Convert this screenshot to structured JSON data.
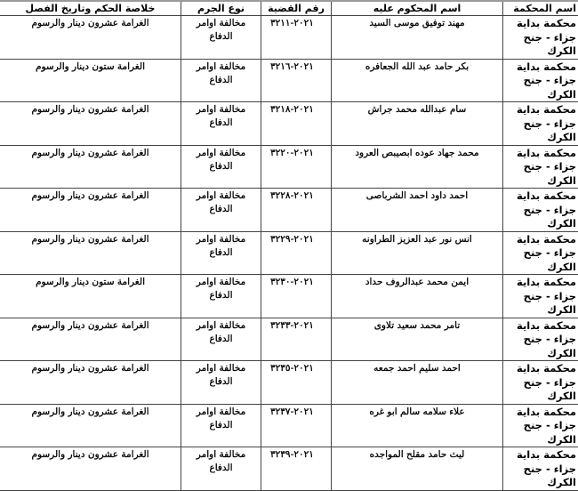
{
  "headers": {
    "court": "اسم المحكمة",
    "name": "اسم المحكوم عليه",
    "case": "رقم القضية",
    "crime": "نوع الجرم",
    "verdict": "خلاصة الحكم وتاريخ الفصل"
  },
  "rows": [
    {
      "court": "محكمة بداية جزاء - جنح الكرك",
      "name": "مهند توفيق موسى السيد",
      "case": "٢٠٢١-٣٢١١",
      "crime": "مخالفة اوامر الدفاع",
      "verdict": "الغرامة عشرون دينار والرسوم"
    },
    {
      "court": "محكمة بداية جزاء - جنح الكرك",
      "name": "بكر حامد عبد الله الجعافره",
      "case": "٢٠٢١-٣٢١٦",
      "crime": "مخالفة اوامر الدفاع",
      "verdict": "الغرامة ستون دينار والرسوم"
    },
    {
      "court": "محكمة بداية جزاء - جنح الكرك",
      "name": "سام عبدالله محمد جراش",
      "case": "٢٠٢١-٣٢١٨",
      "crime": "مخالفة اوامر الدفاع",
      "verdict": "الغرامة عشرون دينار والرسوم"
    },
    {
      "court": "محكمة بداية جزاء - جنح الكرك",
      "name": "محمد جهاد عوده ابصيبص العرود",
      "case": "٢٠٢١-٣٢٢٠",
      "crime": "مخالفة اوامر الدفاع",
      "verdict": "الغرامة عشرون دينار والرسوم"
    },
    {
      "court": "محكمة بداية جزاء - جنح الكرك",
      "name": "احمد داود احمد الشرباصى",
      "case": "٢٠٢١-٣٢٢٨",
      "crime": "مخالفة اوامر الدفاع",
      "verdict": "الغرامة عشرون دينار والرسوم"
    },
    {
      "court": "محكمة بداية جزاء - جنح الكرك",
      "name": "انس نور عبد العزيز الطراونه",
      "case": "٢٠٢١-٣٢٢٩",
      "crime": "مخالفة اوامر الدفاع",
      "verdict": "الغرامة عشرون دينار والرسوم"
    },
    {
      "court": "محكمة بداية جزاء - جنح الكرك",
      "name": "ايمن محمد عبدالروف حداد",
      "case": "٢٠٢١-٣٢٣٠",
      "crime": "مخالفة اوامر الدفاع",
      "verdict": "الغرامة ستون دينار والرسوم"
    },
    {
      "court": "محكمة بداية جزاء - جنح الكرك",
      "name": "تامر محمد سعيد تلاوى",
      "case": "٢٠٢١-٣٢٣٣",
      "crime": "مخالفة اوامر الدفاع",
      "verdict": "الغرامة عشرون دينار والرسوم"
    },
    {
      "court": "محكمة بداية جزاء - جنح الكرك",
      "name": "احمد سليم احمد جمعه",
      "case": "٢٠٢١-٣٢٣٥",
      "crime": "مخالفة اوامر الدفاع",
      "verdict": "الغرامة عشرون دينار والرسوم"
    },
    {
      "court": "محكمة بداية جزاء - جنح الكرك",
      "name": "علاء سلامه سالم ابو غره",
      "case": "٢٠٢١-٣٢٣٧",
      "crime": "مخالفة اوامر الدفاع",
      "verdict": "الغرامة عشرون دينار والرسوم"
    },
    {
      "court": "محكمة بداية جزاء - جنح الكرك",
      "name": "ليث حامد مقلح المواجده",
      "case": "٢٠٢١-٣٢٣٩",
      "crime": "مخالفة اوامر الدفاع",
      "verdict": "الغرامة عشرون دينار والرسوم"
    }
  ]
}
